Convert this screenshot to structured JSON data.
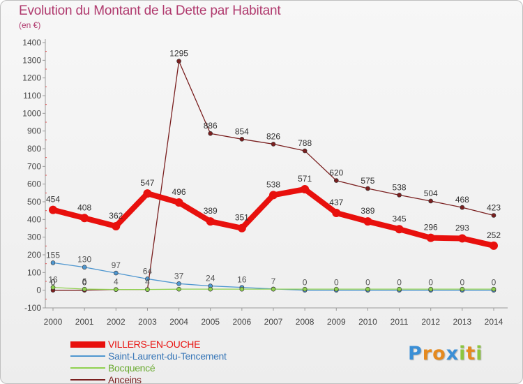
{
  "title": "Evolution du Montant de la Dette par Habitant",
  "subtitle": "(en €)",
  "logo": {
    "text": "Proxiti",
    "letters": [
      {
        "ch": "P",
        "color": "#3a8fd6"
      },
      {
        "ch": "r",
        "color": "#e58a1f"
      },
      {
        "ch": "o",
        "color": "#e58a1f"
      },
      {
        "ch": "x",
        "color": "#3a8fd6"
      },
      {
        "ch": "i",
        "color": "#8cc63f"
      },
      {
        "ch": "t",
        "color": "#e58a1f"
      },
      {
        "ch": "i",
        "color": "#8cc63f"
      }
    ]
  },
  "chart_data": {
    "type": "line",
    "title": "Evolution du Montant de la Dette par Habitant",
    "subtitle": "(en €)",
    "x": [
      "2000",
      "2001",
      "2002",
      "2003",
      "2004",
      "2005",
      "2006",
      "2007",
      "2008",
      "2009",
      "2010",
      "2011",
      "2012",
      "2013",
      "2014"
    ],
    "ylim": [
      -100,
      1400
    ],
    "yticks": [
      -100,
      0,
      100,
      200,
      300,
      400,
      500,
      600,
      700,
      800,
      900,
      1000,
      1100,
      1200,
      1300,
      1400
    ],
    "grid": false,
    "legend_position": "bottom-left",
    "series": [
      {
        "name": "VILLERS-EN-OUCHE",
        "color": "#e8100d",
        "labelColor": "#333333",
        "emphasis": true,
        "values": [
          454,
          408,
          362,
          547,
          496,
          389,
          351,
          538,
          571,
          437,
          389,
          345,
          296,
          293,
          252
        ],
        "labels": [
          "454",
          "408",
          "362",
          "547",
          "496",
          "389",
          "351",
          "538",
          "571",
          "437",
          "389",
          "345",
          "296",
          "293",
          "252"
        ]
      },
      {
        "name": "Saint-Laurent-du-Tencement",
        "color": "#4f97d0",
        "labelColor": "#555555",
        "emphasis": false,
        "values": [
          155,
          130,
          97,
          64,
          37,
          24,
          16,
          7,
          0,
          0,
          0,
          0,
          0,
          0,
          0
        ],
        "labels": [
          "155",
          "130",
          "97",
          "64",
          "37",
          "24",
          "16",
          "7",
          "0",
          "0",
          "0",
          "0",
          "0",
          "0",
          "0"
        ]
      },
      {
        "name": "Bocquencé",
        "color": "#8fd14f",
        "labelColor": "#555555",
        "emphasis": false,
        "values": [
          16,
          6,
          4,
          4,
          6,
          6,
          6,
          6,
          6,
          6,
          6,
          6,
          6,
          6,
          6
        ],
        "labels": [
          "16",
          "6",
          "4",
          "4",
          "",
          "",
          "",
          "",
          "",
          "",
          "",
          "",
          "",
          "",
          ""
        ]
      },
      {
        "name": "Anceins",
        "color": "#7a1f1f",
        "labelColor": "#333333",
        "emphasis": false,
        "values": [
          0,
          0,
          4,
          4,
          1295,
          886,
          854,
          826,
          788,
          620,
          575,
          538,
          504,
          468,
          423
        ],
        "labels": [
          "0",
          "0",
          "",
          "",
          "1295",
          "886",
          "854",
          "826",
          "788",
          "620",
          "575",
          "538",
          "504",
          "468",
          "423"
        ]
      }
    ]
  }
}
